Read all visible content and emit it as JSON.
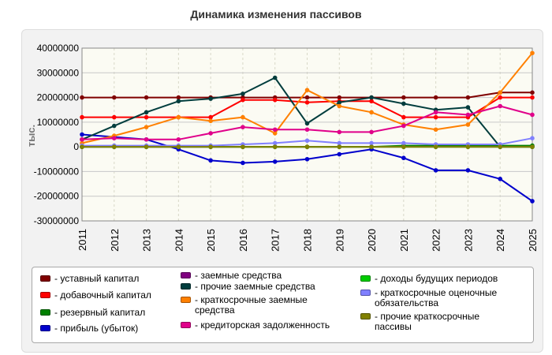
{
  "chart_data": {
    "type": "line",
    "title": "Динамика изменения пассивов",
    "ylabel": "тыс.",
    "xlabel": "",
    "ylim": [
      -30000000,
      40000000
    ],
    "yticks": [
      -30000000,
      -20000000,
      -10000000,
      0,
      10000000,
      20000000,
      30000000,
      40000000
    ],
    "ytick_labels": [
      "-30000000",
      "-20000000",
      "-10000000",
      "0",
      "10000000",
      "20000000",
      "30000000",
      "40000000"
    ],
    "categories": [
      "2011",
      "2012",
      "2013",
      "2014",
      "2015",
      "2016",
      "2017",
      "2018",
      "2019",
      "2020",
      "2021",
      "2022",
      "2023",
      "2024",
      "2025"
    ],
    "grid": true,
    "legend_position": "bottom",
    "series": [
      {
        "name": "- уставный капитал",
        "color": "#800000",
        "values": [
          20000000,
          20000000,
          20000000,
          20000000,
          20000000,
          20000000,
          20000000,
          20000000,
          20000000,
          20000000,
          20000000,
          20000000,
          20000000,
          22000000,
          22000000
        ]
      },
      {
        "name": "- добавочный капитал",
        "color": "#ff0000",
        "values": [
          12000000,
          12000000,
          12000000,
          12000000,
          12000000,
          19000000,
          19000000,
          18000000,
          18500000,
          18500000,
          12000000,
          12000000,
          12000000,
          20000000,
          20000000
        ]
      },
      {
        "name": "- резервный капитал",
        "color": "#008000",
        "values": [
          0,
          0,
          0,
          0,
          0,
          0,
          0,
          0,
          0,
          0,
          500000,
          500000,
          500000,
          500000,
          500000
        ]
      },
      {
        "name": "- прибыль (убыток)",
        "color": "#0000cc",
        "values": [
          5000000,
          4000000,
          3000000,
          -1000000,
          -5500000,
          -6500000,
          -6000000,
          -5000000,
          -3000000,
          -1000000,
          -4500000,
          -9500000,
          -9500000,
          -13000000,
          -22000000
        ]
      },
      {
        "name": "- заемные средства",
        "color": "#800080",
        "values": [
          0,
          0,
          0,
          0,
          0,
          0,
          0,
          0,
          0,
          0,
          0,
          0,
          0,
          0,
          0
        ]
      },
      {
        "name": "- прочие заемные средства",
        "color": "#003d3d",
        "values": [
          3000000,
          8500000,
          14000000,
          18500000,
          19500000,
          21500000,
          28000000,
          9500000,
          18000000,
          20000000,
          17500000,
          15000000,
          16000000,
          0,
          0
        ]
      },
      {
        "name": "- краткосрочные заемные средства",
        "color": "#ff8000",
        "values": [
          1500000,
          4500000,
          8000000,
          12000000,
          10500000,
          12000000,
          5500000,
          23000000,
          16500000,
          14000000,
          9000000,
          7000000,
          9000000,
          22000000,
          38000000
        ]
      },
      {
        "name": "- кредиторская задолженность",
        "color": "#e0008a",
        "values": [
          3000000,
          3500000,
          3000000,
          3000000,
          5500000,
          8000000,
          7000000,
          7000000,
          6000000,
          6000000,
          8500000,
          14000000,
          13000000,
          16500000,
          13000000
        ]
      },
      {
        "name": "- доходы будущих периодов",
        "color": "#00cc00",
        "values": [
          0,
          0,
          0,
          0,
          0,
          0,
          0,
          0,
          0,
          0,
          0,
          0,
          0,
          0,
          0
        ]
      },
      {
        "name": "- краткосрочные оценочные обязательства",
        "color": "#8080ff",
        "values": [
          500000,
          500000,
          500000,
          500000,
          500000,
          1000000,
          1500000,
          2500000,
          1500000,
          1500000,
          1500000,
          1000000,
          1000000,
          1000000,
          3500000
        ]
      },
      {
        "name": "- прочие краткосрочные пассивы",
        "color": "#808000",
        "values": [
          0,
          0,
          0,
          0,
          0,
          0,
          0,
          0,
          0,
          0,
          0,
          0,
          0,
          0,
          0
        ]
      }
    ]
  }
}
